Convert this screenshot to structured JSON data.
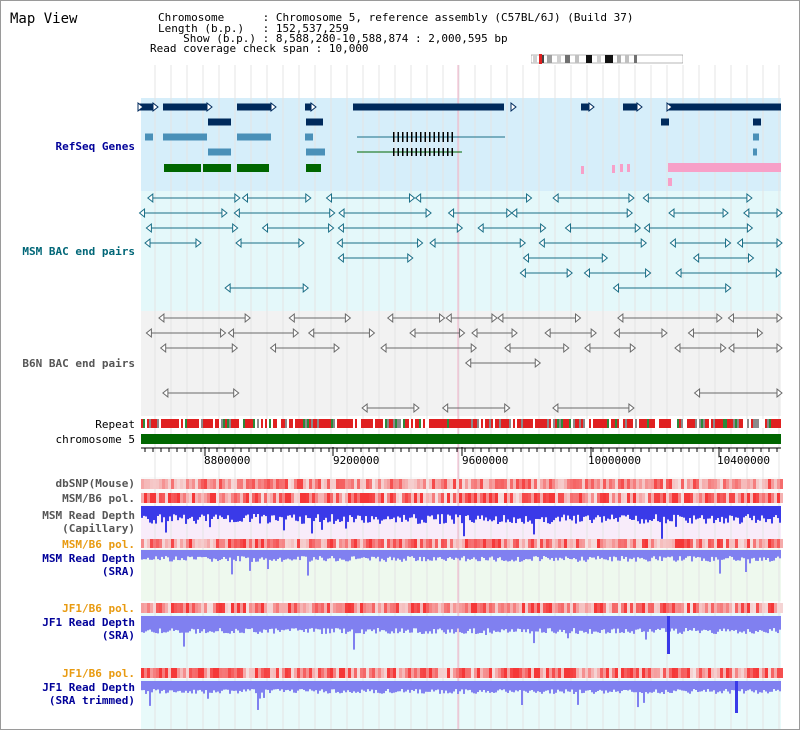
{
  "map_title": "Map View",
  "header": {
    "chromosome_label": "Chromosome",
    "chromosome_value": ": Chromosome 5, reference assembly (C57BL/6J) (Build 37)",
    "length_label": "Length (b.p.)",
    "length_value": ": 152,537,259",
    "show_label": "Show (b.p.)",
    "show_value": ": 8,588,280-10,588,874 : 2,000,595 bp",
    "coverage_label": "Read coverage check span",
    "coverage_value": ": 10,000"
  },
  "tracks": {
    "refseq": "RefSeq Genes",
    "msm_bac": "MSM BAC end pairs",
    "b6n_bac": "B6N BAC end pairs",
    "repeat": "Repeat",
    "chromosome": "chromosome 5",
    "dbsnp": "dbSNP(Mouse)",
    "msm_b6_pol": "MSM/B6 pol.",
    "msm_depth_cap_1": "MSM Read Depth",
    "msm_depth_cap_2": "(Capillary)",
    "msm_b6_pol_2": "MSM/B6 pol.",
    "msm_depth_sra_1": "MSM Read Depth",
    "msm_depth_sra_2": "(SRA)",
    "jf1_b6_pol_1": "JF1/B6 pol.",
    "jf1_depth_sra_1": "JF1 Read Depth",
    "jf1_depth_sra_2": "(SRA)",
    "jf1_b6_pol_2": "JF1/B6 pol.",
    "jf1_depth_trim_1": "JF1 Read Depth",
    "jf1_depth_trim_2": "(SRA trimmed)"
  },
  "axis": {
    "ticks": [
      "8800000",
      "9200000",
      "9600000",
      "10000000",
      "10400000"
    ]
  },
  "colors": {
    "refseq_bg": "#d6eefa",
    "msm_bac_bg": "#e4f8fa",
    "b6n_bac_bg": "#f2f2f2",
    "gene_navy": "#002a5c",
    "gene_steel": "#4a90b8",
    "gene_green": "#006600",
    "gene_pink": "#f7a0c8",
    "msm_pair": "#1a6e86",
    "b6n_pair": "#6a6a6a",
    "repeat_red": "#e02020",
    "chrom_green": "#006600",
    "depth_blue": "#3a3ae8",
    "depth_light_blue": "#8080f0",
    "pol_red": "#e83a3a"
  }
}
